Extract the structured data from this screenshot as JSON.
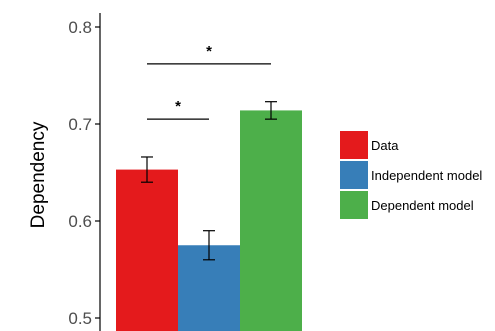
{
  "chart_data": {
    "type": "bar",
    "title": "",
    "xlabel": "",
    "ylabel": "Dependency",
    "ylim": [
      0.49,
      0.81
    ],
    "yticks": [
      0.5,
      0.6,
      0.7,
      0.8
    ],
    "ytick_labels": [
      "0.5",
      "0.6",
      "0.7",
      "0.8"
    ],
    "grid": false,
    "legend_position": "right",
    "categories": [
      "Data",
      "Independent model",
      "Dependent model"
    ],
    "values": [
      0.653,
      0.575,
      0.714
    ],
    "error": [
      0.013,
      0.015,
      0.009
    ],
    "colors": [
      "#e41a1c",
      "#377eb8",
      "#4daf4a"
    ],
    "significance": [
      {
        "from": 0,
        "to": 1,
        "label": "*",
        "y": 0.705
      },
      {
        "from": 0,
        "to": 2,
        "label": "*",
        "y": 0.762
      }
    ]
  }
}
